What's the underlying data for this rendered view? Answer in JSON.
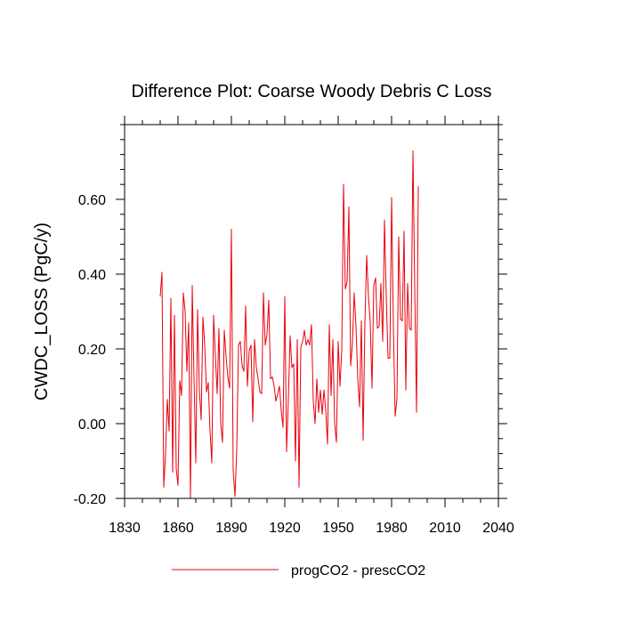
{
  "chart_data": {
    "type": "line",
    "title": "Difference Plot: Coarse Woody Debris C Loss",
    "ylabel": "CWDC_LOSS  (PgC/y)",
    "xlabel": "",
    "xlim": [
      1830,
      2040
    ],
    "ylim": [
      -0.2,
      0.8
    ],
    "xticks": [
      1830,
      1860,
      1890,
      1920,
      1950,
      1980,
      2010,
      2040
    ],
    "yticks": [
      -0.2,
      0.0,
      0.2,
      0.4,
      0.6
    ],
    "ytick_labels": [
      "-0.20",
      "0.00",
      "0.20",
      "0.40",
      "0.60"
    ],
    "legend": {
      "position": "bottom-center",
      "label": "progCO2 - prescCO2"
    },
    "series": [
      {
        "name": "progCO2 - prescCO2",
        "color": "#e8000b",
        "x_start": 1850,
        "x_step": 1,
        "values": [
          0.34,
          0.405,
          -0.17,
          -0.08,
          0.065,
          -0.02,
          0.335,
          -0.13,
          0.29,
          -0.12,
          -0.165,
          0.115,
          0.075,
          0.35,
          0.3,
          0.14,
          0.27,
          -0.2,
          0.37,
          0.12,
          -0.105,
          0.305,
          0.09,
          0.01,
          0.285,
          0.21,
          0.085,
          0.11,
          -0.02,
          -0.105,
          0.29,
          0.18,
          0.08,
          0.255,
          0.0,
          -0.05,
          0.25,
          0.18,
          0.125,
          0.095,
          0.52,
          -0.125,
          -0.195,
          -0.07,
          0.21,
          0.22,
          0.155,
          0.14,
          0.315,
          0.1,
          0.195,
          0.21,
          0.005,
          0.225,
          0.15,
          0.12,
          0.085,
          0.08,
          0.35,
          0.21,
          0.24,
          0.33,
          0.12,
          0.125,
          0.1,
          0.06,
          0.08,
          0.1,
          0.035,
          -0.01,
          0.34,
          -0.075,
          0.065,
          0.235,
          0.15,
          0.16,
          -0.1,
          0.225,
          -0.17,
          0.205,
          0.22,
          0.25,
          0.21,
          0.225,
          0.21,
          0.265,
          0.06,
          0.0,
          0.12,
          0.03,
          0.09,
          0.025,
          0.09,
          0.035,
          -0.055,
          0.265,
          0.075,
          0.225,
          0.0,
          -0.05,
          0.22,
          0.1,
          0.195,
          0.64,
          0.36,
          0.38,
          0.58,
          0.155,
          0.215,
          0.35,
          0.26,
          0.12,
          0.045,
          0.275,
          -0.045,
          0.27,
          0.45,
          0.34,
          0.27,
          0.095,
          0.37,
          0.39,
          0.255,
          0.26,
          0.375,
          0.22,
          0.545,
          0.34,
          0.175,
          0.175,
          0.605,
          0.26,
          0.02,
          0.065,
          0.5,
          0.28,
          0.275,
          0.515,
          0.09,
          0.375,
          0.255,
          0.25,
          0.73,
          0.36,
          0.03,
          0.635
        ]
      }
    ]
  }
}
